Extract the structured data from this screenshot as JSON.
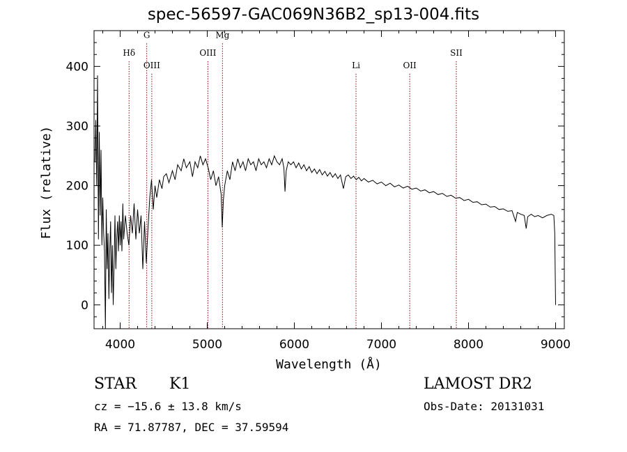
{
  "chart_data": {
    "type": "line",
    "title": "spec-56597-GAC069N36B2_sp13-004.fits",
    "xlabel": "Wavelength (Å)",
    "ylabel": "Flux (relative)",
    "xlim": [
      3700,
      9100
    ],
    "ylim": [
      -40,
      460
    ],
    "xticks": [
      4000,
      5000,
      6000,
      7000,
      8000,
      9000
    ],
    "yticks": [
      0,
      100,
      200,
      300,
      400
    ],
    "grid": false,
    "series": [
      {
        "color": "#000000",
        "points": [
          [
            3710,
            240
          ],
          [
            3720,
            310
          ],
          [
            3730,
            200
          ],
          [
            3740,
            385
          ],
          [
            3750,
            110
          ],
          [
            3760,
            290
          ],
          [
            3770,
            150
          ],
          [
            3780,
            260
          ],
          [
            3790,
            100
          ],
          [
            3800,
            180
          ],
          [
            3810,
            120
          ],
          [
            3820,
            90
          ],
          [
            3830,
            -40
          ],
          [
            3840,
            160
          ],
          [
            3850,
            60
          ],
          [
            3860,
            120
          ],
          [
            3870,
            10
          ],
          [
            3880,
            90
          ],
          [
            3890,
            140
          ],
          [
            3900,
            20
          ],
          [
            3910,
            100
          ],
          [
            3920,
            0
          ],
          [
            3930,
            70
          ],
          [
            3940,
            150
          ],
          [
            3950,
            60
          ],
          [
            3960,
            110
          ],
          [
            3970,
            140
          ],
          [
            3980,
            90
          ],
          [
            3990,
            150
          ],
          [
            4000,
            100
          ],
          [
            4010,
            140
          ],
          [
            4020,
            90
          ],
          [
            4030,
            170
          ],
          [
            4040,
            110
          ],
          [
            4060,
            150
          ],
          [
            4080,
            120
          ],
          [
            4100,
            100
          ],
          [
            4120,
            150
          ],
          [
            4140,
            120
          ],
          [
            4160,
            170
          ],
          [
            4180,
            110
          ],
          [
            4200,
            160
          ],
          [
            4220,
            120
          ],
          [
            4240,
            150
          ],
          [
            4260,
            60
          ],
          [
            4280,
            140
          ],
          [
            4300,
            70
          ],
          [
            4320,
            130
          ],
          [
            4340,
            180
          ],
          [
            4360,
            210
          ],
          [
            4380,
            160
          ],
          [
            4400,
            200
          ],
          [
            4420,
            180
          ],
          [
            4450,
            210
          ],
          [
            4480,
            195
          ],
          [
            4500,
            215
          ],
          [
            4530,
            220
          ],
          [
            4560,
            205
          ],
          [
            4600,
            225
          ],
          [
            4630,
            210
          ],
          [
            4660,
            235
          ],
          [
            4700,
            225
          ],
          [
            4730,
            245
          ],
          [
            4760,
            230
          ],
          [
            4800,
            240
          ],
          [
            4830,
            215
          ],
          [
            4860,
            240
          ],
          [
            4890,
            230
          ],
          [
            4920,
            250
          ],
          [
            4950,
            235
          ],
          [
            4980,
            245
          ],
          [
            5010,
            230
          ],
          [
            5040,
            210
          ],
          [
            5070,
            225
          ],
          [
            5100,
            200
          ],
          [
            5130,
            215
          ],
          [
            5160,
            185
          ],
          [
            5172,
            130
          ],
          [
            5185,
            175
          ],
          [
            5200,
            200
          ],
          [
            5230,
            225
          ],
          [
            5260,
            210
          ],
          [
            5290,
            240
          ],
          [
            5320,
            225
          ],
          [
            5350,
            245
          ],
          [
            5380,
            230
          ],
          [
            5410,
            240
          ],
          [
            5440,
            225
          ],
          [
            5470,
            245
          ],
          [
            5500,
            235
          ],
          [
            5530,
            240
          ],
          [
            5560,
            225
          ],
          [
            5590,
            245
          ],
          [
            5620,
            235
          ],
          [
            5650,
            240
          ],
          [
            5680,
            230
          ],
          [
            5710,
            245
          ],
          [
            5740,
            235
          ],
          [
            5770,
            250
          ],
          [
            5800,
            240
          ],
          [
            5830,
            235
          ],
          [
            5860,
            245
          ],
          [
            5880,
            230
          ],
          [
            5893,
            190
          ],
          [
            5906,
            225
          ],
          [
            5930,
            240
          ],
          [
            5960,
            235
          ],
          [
            5990,
            240
          ],
          [
            6020,
            230
          ],
          [
            6050,
            238
          ],
          [
            6080,
            228
          ],
          [
            6110,
            235
          ],
          [
            6140,
            225
          ],
          [
            6170,
            232
          ],
          [
            6200,
            222
          ],
          [
            6230,
            228
          ],
          [
            6260,
            220
          ],
          [
            6290,
            227
          ],
          [
            6320,
            218
          ],
          [
            6350,
            224
          ],
          [
            6380,
            216
          ],
          [
            6410,
            222
          ],
          [
            6440,
            214
          ],
          [
            6470,
            220
          ],
          [
            6500,
            212
          ],
          [
            6530,
            218
          ],
          [
            6563,
            195
          ],
          [
            6590,
            215
          ],
          [
            6620,
            218
          ],
          [
            6650,
            212
          ],
          [
            6680,
            216
          ],
          [
            6710,
            210
          ],
          [
            6740,
            214
          ],
          [
            6770,
            208
          ],
          [
            6800,
            212
          ],
          [
            6850,
            206
          ],
          [
            6900,
            209
          ],
          [
            6950,
            203
          ],
          [
            7000,
            206
          ],
          [
            7050,
            200
          ],
          [
            7100,
            204
          ],
          [
            7150,
            198
          ],
          [
            7200,
            201
          ],
          [
            7250,
            196
          ],
          [
            7300,
            199
          ],
          [
            7350,
            194
          ],
          [
            7400,
            196
          ],
          [
            7450,
            191
          ],
          [
            7500,
            193
          ],
          [
            7550,
            188
          ],
          [
            7600,
            190
          ],
          [
            7650,
            185
          ],
          [
            7700,
            187
          ],
          [
            7750,
            182
          ],
          [
            7800,
            184
          ],
          [
            7850,
            179
          ],
          [
            7900,
            180
          ],
          [
            7950,
            175
          ],
          [
            8000,
            177
          ],
          [
            8050,
            172
          ],
          [
            8100,
            173
          ],
          [
            8150,
            168
          ],
          [
            8200,
            169
          ],
          [
            8250,
            164
          ],
          [
            8300,
            165
          ],
          [
            8350,
            160
          ],
          [
            8400,
            161
          ],
          [
            8450,
            157
          ],
          [
            8500,
            158
          ],
          [
            8540,
            140
          ],
          [
            8560,
            155
          ],
          [
            8600,
            152
          ],
          [
            8640,
            150
          ],
          [
            8662,
            128
          ],
          [
            8680,
            148
          ],
          [
            8720,
            152
          ],
          [
            8760,
            148
          ],
          [
            8800,
            150
          ],
          [
            8850,
            146
          ],
          [
            8900,
            150
          ],
          [
            8950,
            152
          ],
          [
            8980,
            150
          ],
          [
            8990,
            120
          ],
          [
            9000,
            0
          ]
        ]
      }
    ],
    "lines": [
      {
        "label": "Hδ",
        "x": 4102,
        "label_y": 418
      },
      {
        "label": "G",
        "x": 4305,
        "label_y": 448
      },
      {
        "label": "OIII",
        "x": 4363,
        "label_y": 397
      },
      {
        "label": "OIII",
        "x": 5007,
        "label_y": 418
      },
      {
        "label": "Mg",
        "x": 5175,
        "label_y": 448
      },
      {
        "label": "Li",
        "x": 6708,
        "label_y": 397
      },
      {
        "label": "OII",
        "x": 7325,
        "label_y": 397
      },
      {
        "label": "SII",
        "x": 7860,
        "label_y": 418
      }
    ]
  },
  "info": {
    "star_label": "STAR",
    "subclass": "K1",
    "survey": "LAMOST DR2",
    "cz": "cz = −15.6 ± 13.8 km/s",
    "obs_date": "Obs-Date: 20131031",
    "radec": "RA =  71.87787, DEC =  37.59594"
  }
}
